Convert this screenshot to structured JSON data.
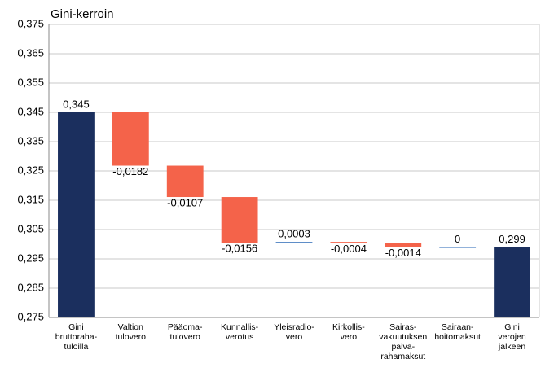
{
  "chart_data": {
    "type": "waterfall",
    "y_label": "Gini-kerroin",
    "categories": [
      "Gini\nbruttoraha-\ntuloilla",
      "Valtion\ntulovero",
      "Pääoma-\ntulovero",
      "Kunnallis-\nverotus",
      "Yleisradio-\nvero",
      "Kirkollis-\nvero",
      "Sairas-\nvakuutuksen\npäivä-\nrahamaksut",
      "Sairaan-\nhoitomaksut",
      "Gini\nverojen\njälkeen"
    ],
    "values": [
      0.345,
      -0.0182,
      -0.0107,
      -0.0156,
      0.0003,
      -0.0004,
      -0.0014,
      0,
      0.299
    ],
    "value_labels": [
      "0,345",
      "-0,0182",
      "-0,0107",
      "-0,0156",
      "0,0003",
      "-0,0004",
      "-0,0014",
      "0",
      "0,299"
    ],
    "totals": [
      0,
      8
    ],
    "total_color": "#1b2f5e",
    "increase_color": "#4a7fc1",
    "decrease_color": "#f4634a",
    "ylim": [
      0.275,
      0.375
    ],
    "yticks": [
      {
        "value": 0.275,
        "label": "0,275"
      },
      {
        "value": 0.285,
        "label": "0,285"
      },
      {
        "value": 0.295,
        "label": "0,295"
      },
      {
        "value": 0.305,
        "label": "0,305"
      },
      {
        "value": 0.315,
        "label": "0,315"
      },
      {
        "value": 0.325,
        "label": "0,325"
      },
      {
        "value": 0.335,
        "label": "0,335"
      },
      {
        "value": 0.345,
        "label": "0,345"
      },
      {
        "value": 0.355,
        "label": "0,355"
      },
      {
        "value": 0.365,
        "label": "0,365"
      },
      {
        "value": 0.375,
        "label": "0,375"
      }
    ],
    "grid": true
  }
}
